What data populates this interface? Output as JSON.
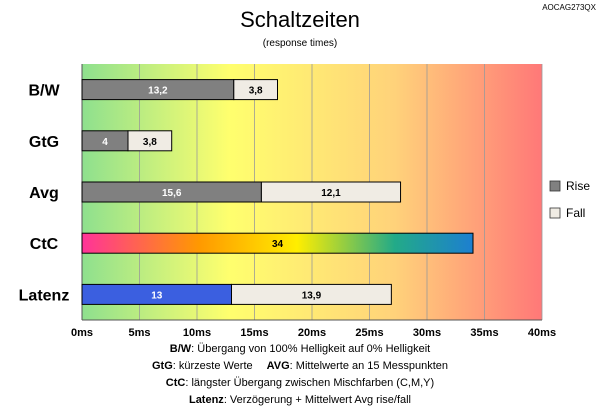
{
  "chart_data": {
    "type": "bar",
    "orientation": "horizontal",
    "stacked": true,
    "title": "Schaltzeiten",
    "subtitle": "(response times)",
    "model_id": "AOCAG273QX",
    "categories": [
      "B/W",
      "GtG",
      "Avg",
      "CtC",
      "Latenz"
    ],
    "series": [
      {
        "name": "Rise",
        "values": [
          13.2,
          4,
          15.6,
          34,
          13
        ],
        "labels": [
          "13,2",
          "4",
          "15,6",
          "34",
          "13"
        ]
      },
      {
        "name": "Fall",
        "values": [
          3.8,
          3.8,
          12.1,
          null,
          13.9
        ],
        "labels": [
          "3,8",
          "3,8",
          "12,1",
          "",
          "13,9"
        ]
      }
    ],
    "xlim": [
      0,
      40
    ],
    "xticks": [
      "0ms",
      "5ms",
      "10ms",
      "15ms",
      "20ms",
      "25ms",
      "30ms",
      "35ms",
      "40ms"
    ],
    "grid": true,
    "legend": "right",
    "background": "gradient green-yellow-orange-red",
    "colors": {
      "rise": "#808080",
      "fall": "#f0ece4",
      "latenz_rise": "#3b5fe0",
      "ctc_gradient": [
        "#ff3399",
        "#ff9900",
        "#ffee00",
        "#22aa88",
        "#1d7fd0"
      ],
      "bg_gradient": [
        "#8ee08e",
        "#ffff6e",
        "#ffd27a",
        "#ff7878"
      ]
    }
  },
  "notes": [
    {
      "bold": "B/W",
      "text": ":  Übergang von 100% Helligkeit auf 0% Helligkeit"
    },
    {
      "bold": "GtG",
      "text": ": kürzeste  Werte",
      "bold2": "AVG",
      "text2": ": Mittelwerte  an 15 Messpunkten"
    },
    {
      "bold": "CtC",
      "text": ": längster Übergang  zwischen Mischfarben (C,M,Y)"
    },
    {
      "bold": "Latenz",
      "text": ": Verzögerung  + Mittelwert Avg rise/fall"
    }
  ]
}
